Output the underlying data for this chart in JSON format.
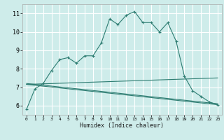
{
  "xlabel": "Humidex (Indice chaleur)",
  "bg_color": "#ceecea",
  "grid_color": "#ffffff",
  "line_color": "#2e7d72",
  "xlim": [
    -0.5,
    23.5
  ],
  "ylim": [
    5.5,
    11.5
  ],
  "yticks": [
    6,
    7,
    8,
    9,
    10,
    11
  ],
  "xticks": [
    0,
    1,
    2,
    3,
    4,
    5,
    6,
    7,
    8,
    9,
    10,
    11,
    12,
    13,
    14,
    15,
    16,
    17,
    18,
    19,
    20,
    21,
    22,
    23
  ],
  "curve1_x": [
    0,
    1,
    2,
    3,
    4,
    5,
    6,
    7,
    8,
    9,
    10,
    11,
    12,
    13,
    14,
    15,
    16,
    17,
    18,
    19,
    20,
    21,
    22,
    23
  ],
  "curve1_y": [
    5.8,
    6.9,
    7.2,
    7.9,
    8.5,
    8.6,
    8.3,
    8.7,
    8.7,
    9.4,
    10.7,
    10.4,
    10.9,
    11.1,
    10.5,
    10.5,
    10.0,
    10.5,
    9.5,
    7.6,
    6.8,
    6.5,
    6.2,
    6.05
  ],
  "line1_x": [
    0,
    23
  ],
  "line1_y": [
    7.15,
    7.5
  ],
  "line2_x": [
    0,
    23
  ],
  "line2_y": [
    7.2,
    6.1
  ],
  "line3_x": [
    0,
    23
  ],
  "line3_y": [
    7.15,
    6.05
  ]
}
